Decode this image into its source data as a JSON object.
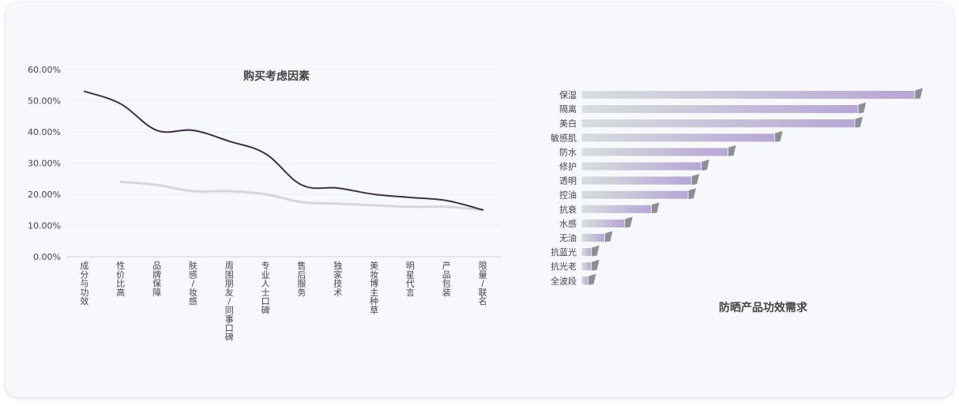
{
  "chart_data": [
    {
      "type": "line",
      "title": "购买考虑因素",
      "categories": [
        "成分与功效",
        "性价比高",
        "品牌保障",
        "肤感/妆感",
        "周围朋友/同事口碑",
        "专业人士口碑",
        "售后服务",
        "独家技术",
        "美妆博主种草",
        "明星代言",
        "产品包装",
        "限量/联名"
      ],
      "ylim": [
        0,
        60
      ],
      "yticks": [
        "0.00%",
        "10.00%",
        "20.00%",
        "30.00%",
        "40.00%",
        "50.00%",
        "60.00%"
      ],
      "grid": true,
      "series": [
        {
          "values": [
            53,
            49,
            40.5,
            40.5,
            37,
            33,
            23,
            22,
            20,
            19,
            18,
            15
          ],
          "color": "#3d3048"
        },
        {
          "values": [
            null,
            24,
            23,
            21,
            21,
            20,
            17.5,
            17,
            16.5,
            16,
            16,
            15
          ],
          "color": "#d4d6da"
        }
      ]
    },
    {
      "type": "bar",
      "orientation": "horizontal",
      "title": "防晒产品功效需求",
      "categories": [
        "保湿",
        "隔离",
        "美白",
        "敏感肌",
        "防水",
        "修护",
        "透明",
        "控油",
        "抗衰",
        "水感",
        "无油",
        "抗蓝光",
        "抗光老",
        "全波段"
      ],
      "values": [
        100,
        83,
        82,
        58,
        44,
        36,
        33,
        32,
        21,
        13,
        7,
        3,
        3,
        2
      ],
      "xlim": [
        0,
        100
      ],
      "color": "#b8a8d4"
    }
  ]
}
